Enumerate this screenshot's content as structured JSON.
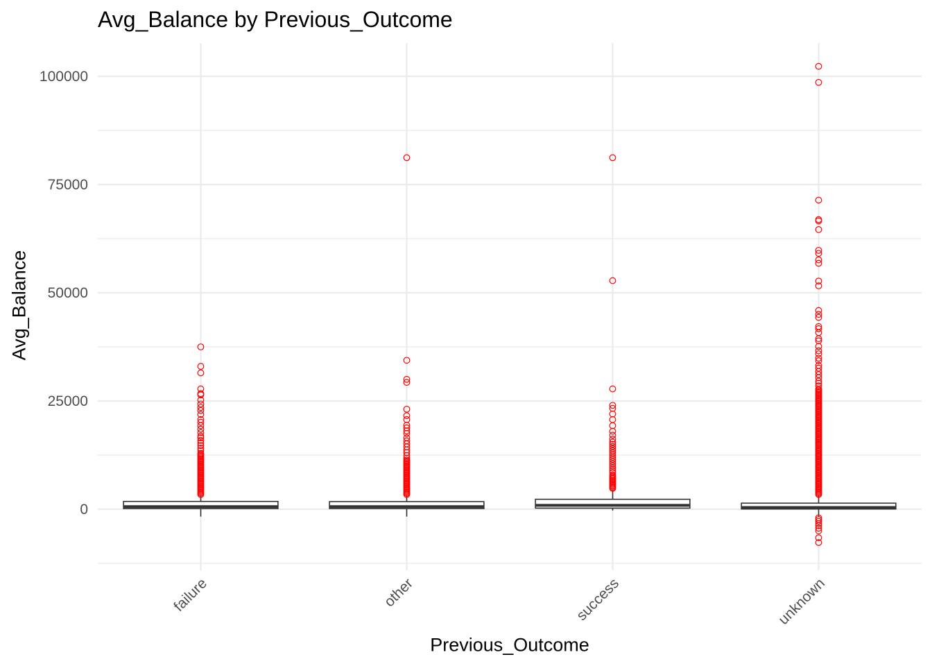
{
  "chart_data": {
    "type": "boxplot",
    "title": "Avg_Balance by Previous_Outcome",
    "xlabel": "Previous_Outcome",
    "ylabel": "Avg_Balance",
    "categories": [
      "failure",
      "other",
      "success",
      "unknown"
    ],
    "ylim": [
      -13000,
      108000
    ],
    "y_ticks": [
      0,
      25000,
      50000,
      75000,
      100000
    ],
    "grid": true,
    "outlier_color": "#ff0000",
    "box_outline_color": "#333333",
    "boxes": [
      {
        "category": "failure",
        "whisker_low": -1700,
        "q1": 150,
        "median": 600,
        "q3": 1800,
        "whisker_high": 3200
      },
      {
        "category": "other",
        "whisker_low": -1700,
        "q1": 150,
        "median": 600,
        "q3": 1750,
        "whisker_high": 3300
      },
      {
        "category": "success",
        "whisker_low": -300,
        "q1": 250,
        "median": 900,
        "q3": 2300,
        "whisker_high": 4500
      },
      {
        "category": "unknown",
        "whisker_low": -1700,
        "q1": 50,
        "median": 400,
        "q3": 1400,
        "whisker_high": 3300
      }
    ],
    "outliers": {
      "failure": {
        "dense_range": [
          3400,
          13000
        ],
        "points": [
          37500,
          33000,
          31500,
          27800,
          26700,
          26400,
          25200,
          24300,
          23500,
          22800,
          21900,
          20700,
          20100,
          19300,
          18500,
          17700,
          16900,
          16500,
          15900,
          15300,
          14700,
          14100,
          13600
        ]
      },
      "other": {
        "dense_range": [
          3400,
          11500
        ],
        "points": [
          81200,
          34400,
          30000,
          29300,
          23100,
          21600,
          20700,
          19400,
          18800,
          18100,
          17500,
          16500,
          15800,
          15100,
          14400,
          13700,
          13100,
          12400,
          11800
        ]
      },
      "success": {
        "dense_range": [
          4800,
          8000
        ],
        "points": [
          81200,
          52800,
          27800,
          24000,
          23300,
          22000,
          20700,
          19300,
          18000,
          17100,
          16200,
          15500,
          15000,
          14500,
          14000,
          13500,
          13000,
          12500,
          12000,
          11500,
          11000,
          10500,
          10000,
          9500,
          9000,
          8500
        ]
      },
      "unknown": {
        "dense_range": [
          3400,
          28000
        ],
        "points": [
          102300,
          98600,
          71400,
          66900,
          66600,
          64600,
          59800,
          59100,
          57600,
          56800,
          52700,
          51600,
          45900,
          45000,
          44300,
          42200,
          41700,
          40800,
          39400,
          38900,
          37600,
          36600,
          35900,
          34900,
          34300,
          33200,
          32600,
          31800,
          31100,
          30400,
          29600,
          29100,
          28500,
          -2000,
          -2400,
          -2800,
          -3300,
          -3800,
          -4400,
          -5000,
          -6600,
          -7700
        ]
      }
    }
  }
}
